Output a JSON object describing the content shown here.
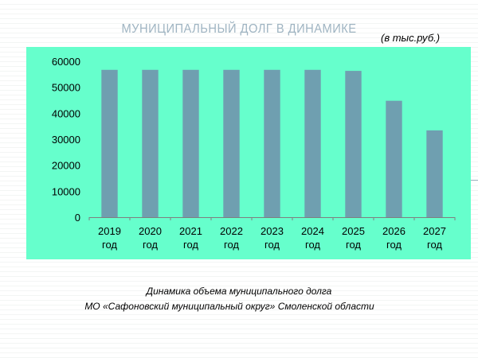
{
  "slide": {
    "title": "МУНИЦИПАЛЬНЫЙ ДОЛГ В ДИНАМИКЕ",
    "unit": "(в тыс.руб.)",
    "caption_line1": "Динамика объема муниципального долга",
    "caption_line2": "МО «Сафоновский муниципальный округ» Смоленской области"
  },
  "colors": {
    "background": "#66ffcc",
    "bar": "#6f9fb0",
    "title": "#9fb4c2"
  },
  "chart_data": {
    "type": "bar",
    "title": "МУНИЦИПАЛЬНЫЙ ДОЛГ В ДИНАМИКЕ",
    "xlabel": "",
    "ylabel": "",
    "categories": [
      [
        "2019",
        "год"
      ],
      [
        "2020",
        "год"
      ],
      [
        "2021",
        "год"
      ],
      [
        "2022",
        "год"
      ],
      [
        "2023",
        "год"
      ],
      [
        "2024",
        "год"
      ],
      [
        "2025",
        "год"
      ],
      [
        "2026",
        "год"
      ],
      [
        "2027",
        "год"
      ]
    ],
    "values": [
      56700,
      56700,
      56700,
      56700,
      56700,
      56700,
      56300,
      44800,
      33400
    ],
    "ylim": [
      0,
      60000
    ],
    "yticks": [
      0,
      10000,
      20000,
      30000,
      40000,
      50000,
      60000
    ],
    "grid": false,
    "legend": "none"
  }
}
